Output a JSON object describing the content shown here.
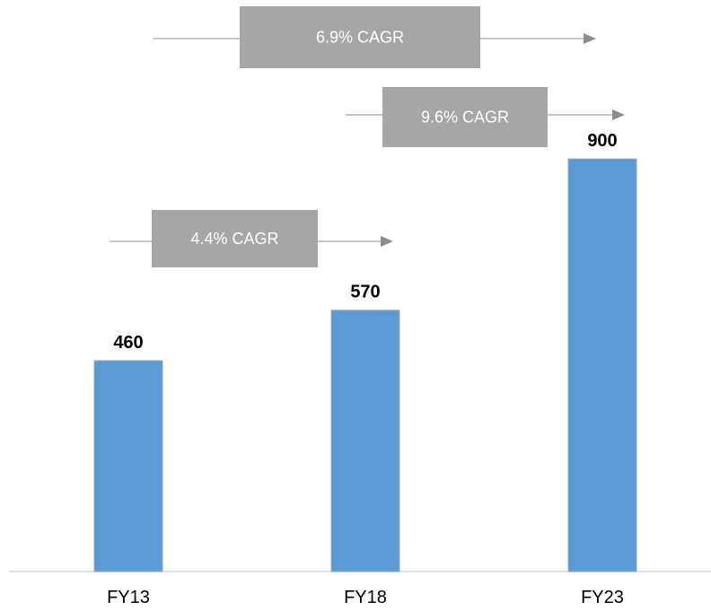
{
  "chart_data": {
    "type": "bar",
    "categories": [
      "FY13",
      "FY18",
      "FY23"
    ],
    "values": [
      460,
      570,
      900
    ],
    "data_labels": [
      "460",
      "570",
      "900"
    ],
    "title": "",
    "xlabel": "",
    "ylabel": "",
    "ylim": [
      0,
      1000
    ],
    "grid": false,
    "legend": "none",
    "annotations": [
      {
        "text": "4.4% CAGR",
        "from": "FY13",
        "to": "FY18"
      },
      {
        "text": "9.6% CAGR",
        "from": "FY18",
        "to": "FY23"
      },
      {
        "text": "6.9% CAGR",
        "from": "FY13",
        "to": "FY23"
      }
    ],
    "colors": {
      "bar": "#5b9bd5",
      "bar_border": "#a6a6a6",
      "annotation_box": "#a6a6a6",
      "annotation_text": "#ffffff",
      "axis": "#d9d9d9"
    }
  }
}
